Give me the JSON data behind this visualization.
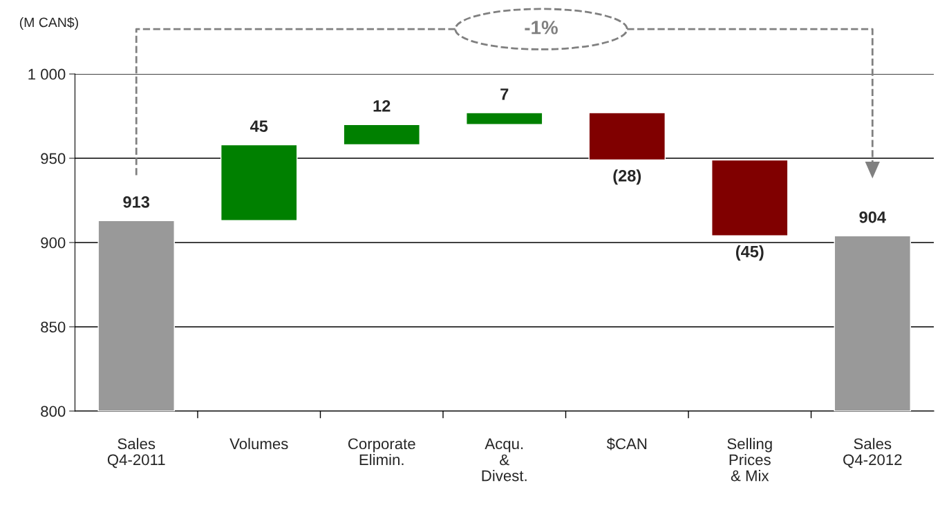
{
  "chart_data": {
    "type": "bar",
    "ylabel": "(M CAN$)",
    "categories": [
      "Sales\nQ4-2011",
      "Volumes",
      "Corporate\nElimin.",
      "Acqu.\n&\nDivest.",
      "$CAN",
      "Selling\nPrices\n& Mix",
      "Sales\nQ4-2012"
    ],
    "base": [
      800,
      913,
      958,
      970,
      977,
      949,
      800
    ],
    "values": [
      113,
      45,
      12,
      7,
      -28,
      -45,
      104
    ],
    "value_labels": [
      "913",
      "45",
      "12",
      "7",
      "(28)",
      "(45)",
      "904"
    ],
    "colors": [
      "#999999",
      "#008000",
      "#008000",
      "#008000",
      "#800000",
      "#800000",
      "#999999"
    ],
    "ylim": [
      800,
      1000
    ],
    "yticks": [
      800,
      850,
      900,
      950,
      {
        "value": 1000,
        "label": "1 000"
      }
    ],
    "grid": "y",
    "annotations": [
      "-1%"
    ]
  }
}
